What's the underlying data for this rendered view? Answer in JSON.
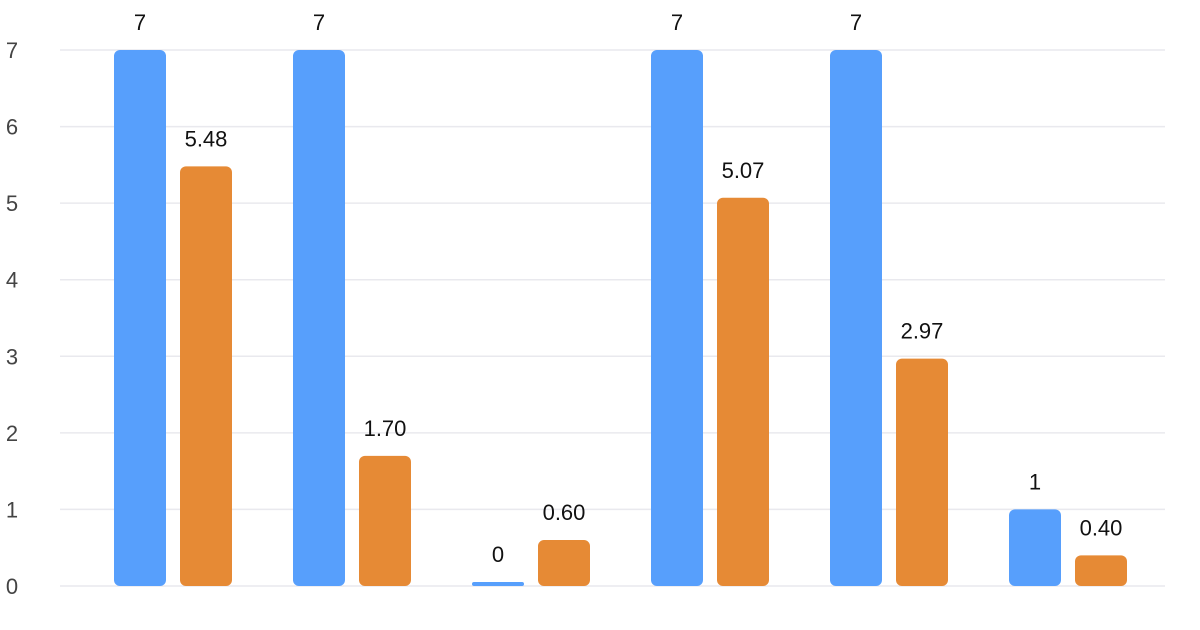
{
  "chart_data": {
    "type": "bar",
    "categories": [
      "",
      "",
      "",
      "",
      "",
      ""
    ],
    "series": [
      {
        "values": [
          7,
          7,
          0,
          7,
          7,
          1
        ],
        "labels": [
          "7",
          "7",
          "0",
          "7",
          "7",
          "1"
        ],
        "color": "#579ffc"
      },
      {
        "values": [
          5.48,
          1.7,
          0.6,
          5.07,
          2.97,
          0.4
        ],
        "labels": [
          "5.48",
          "1.70",
          "0.60",
          "5.07",
          "2.97",
          "0.40"
        ],
        "color": "#e68a35"
      }
    ],
    "yticks": [
      "0",
      "1",
      "2",
      "3",
      "4",
      "5",
      "6",
      "7"
    ],
    "ylim": [
      0,
      7
    ],
    "grid": true,
    "title": "",
    "xlabel": "",
    "ylabel": ""
  }
}
